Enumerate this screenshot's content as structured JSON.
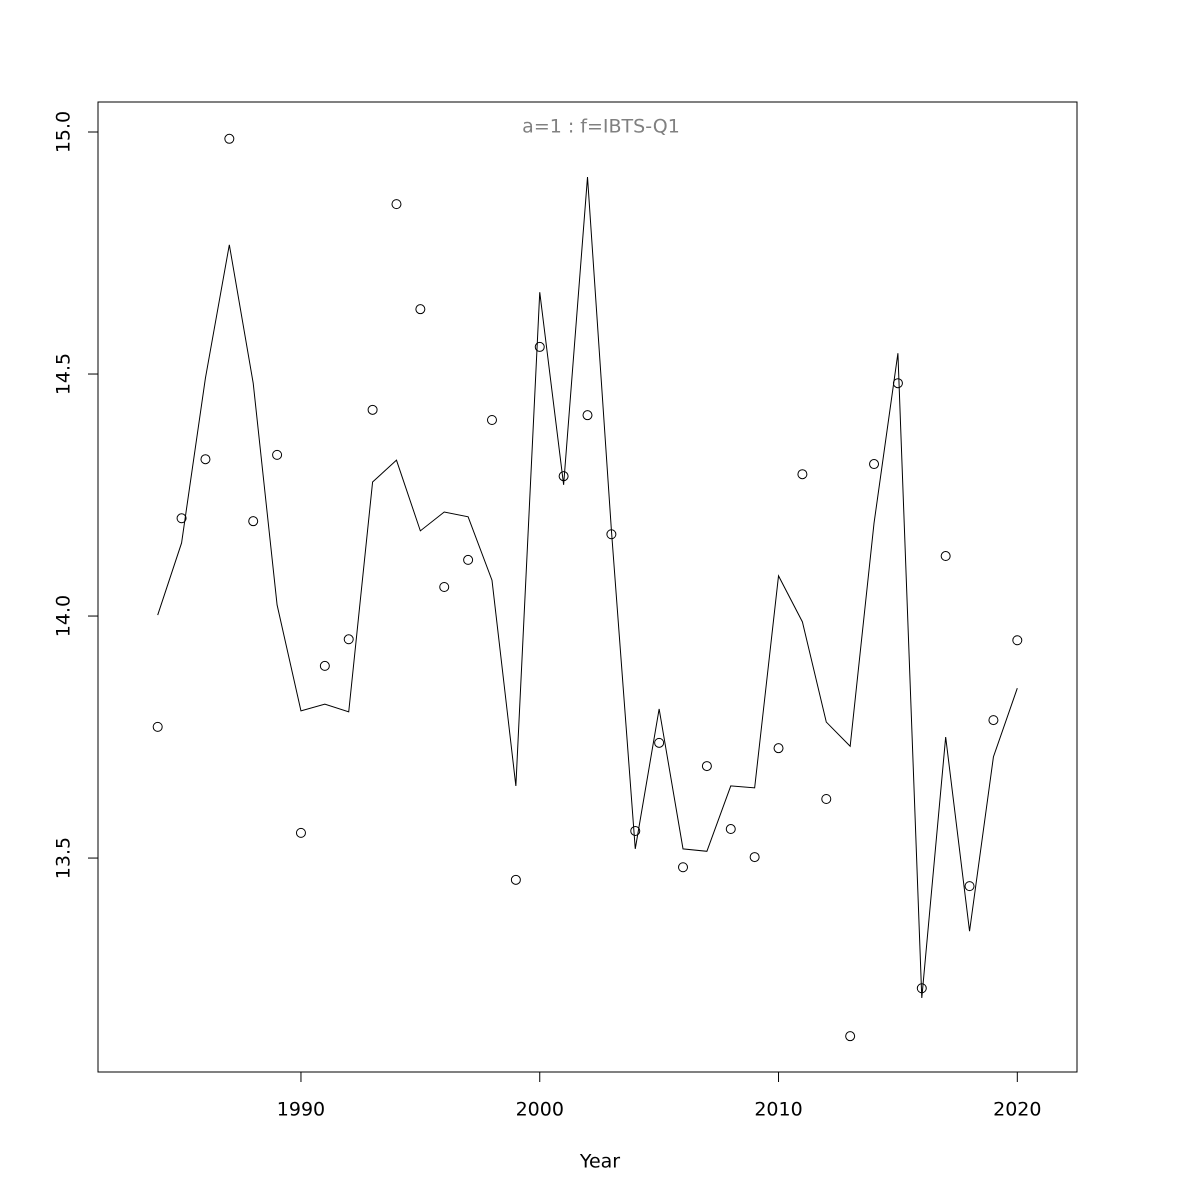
{
  "chart_data": {
    "type": "line",
    "title": "a=1  :  f=IBTS-Q1",
    "xlabel": "Year",
    "x": [
      1984,
      1985,
      1986,
      1987,
      1988,
      1989,
      1990,
      1991,
      1992,
      1993,
      1994,
      1995,
      1996,
      1997,
      1998,
      1999,
      2000,
      2001,
      2002,
      2003,
      2004,
      2005,
      2006,
      2007,
      2008,
      2009,
      2010,
      2011,
      2012,
      2013,
      2014,
      2015,
      2016,
      2017,
      2018,
      2019,
      2020
    ],
    "series": [
      {
        "style": "points",
        "color": "#000000",
        "values": [
          13.771,
          14.202,
          14.324,
          14.986,
          14.196,
          14.333,
          13.552,
          13.897,
          13.952,
          14.426,
          14.851,
          14.634,
          14.06,
          14.116,
          14.405,
          13.455,
          14.556,
          14.289,
          14.415,
          14.169,
          13.556,
          13.738,
          13.481,
          13.69,
          13.56,
          13.502,
          13.727,
          14.293,
          13.622,
          13.132,
          14.314,
          14.481,
          13.231,
          14.124,
          13.442,
          13.785,
          13.95
        ]
      },
      {
        "style": "line",
        "color": "#000000",
        "values": [
          14.002,
          14.151,
          14.492,
          14.767,
          14.481,
          14.023,
          13.804,
          13.818,
          13.802,
          14.277,
          14.322,
          14.176,
          14.215,
          14.205,
          14.074,
          13.649,
          14.669,
          14.271,
          14.907,
          14.178,
          13.519,
          13.808,
          13.519,
          13.514,
          13.649,
          13.645,
          14.083,
          13.988,
          13.781,
          13.731,
          14.192,
          14.543,
          13.211,
          13.75,
          13.349,
          13.709,
          13.851
        ]
      }
    ],
    "xlim": [
      1981.5,
      2022.5
    ],
    "ylim": [
      13.058,
      15.062
    ],
    "xticks": [
      1990,
      2000,
      2010,
      2020
    ],
    "yticks": [
      {
        "value": 13.5,
        "label": "13.5"
      },
      {
        "value": 14,
        "label": "14.0"
      },
      {
        "value": 14.5,
        "label": "14.5"
      },
      {
        "value": 15,
        "label": "15.0"
      }
    ]
  }
}
